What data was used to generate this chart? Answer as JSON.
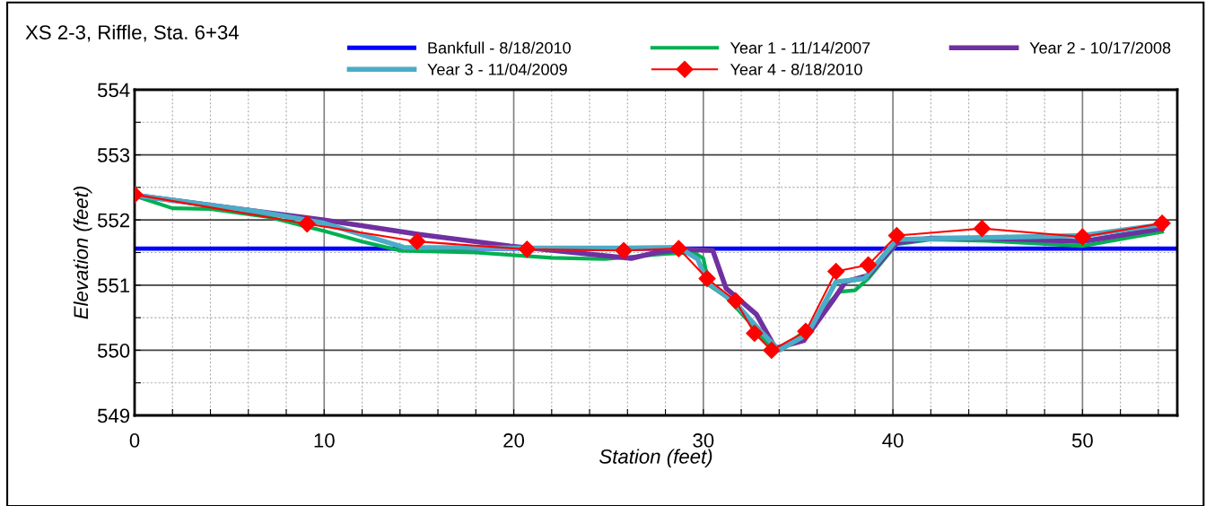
{
  "chart_data": {
    "type": "line",
    "title": "XS 2-3, Riffle, Sta. 6+34",
    "xlabel": "Station (feet)",
    "ylabel": "Elevation (feet)",
    "xlim": [
      0,
      55
    ],
    "ylim": [
      549,
      554
    ],
    "xticks": [
      0,
      {
        "value": 2,
        "label": null
      },
      {
        "value": 4,
        "label": null
      },
      {
        "value": 6,
        "label": null
      },
      {
        "value": 8,
        "label": null
      },
      10,
      {
        "value": 12,
        "label": null
      },
      {
        "value": 14,
        "label": null
      },
      {
        "value": 16,
        "label": null
      },
      {
        "value": 18,
        "label": null
      },
      20,
      {
        "value": 22,
        "label": null
      },
      {
        "value": 24,
        "label": null
      },
      {
        "value": 26,
        "label": null
      },
      {
        "value": 28,
        "label": null
      },
      30,
      {
        "value": 32,
        "label": null
      },
      {
        "value": 34,
        "label": null
      },
      {
        "value": 36,
        "label": null
      },
      {
        "value": 38,
        "label": null
      },
      40,
      {
        "value": 42,
        "label": null
      },
      {
        "value": 44,
        "label": null
      },
      {
        "value": 46,
        "label": null
      },
      {
        "value": 48,
        "label": null
      },
      50,
      {
        "value": 52,
        "label": null
      },
      {
        "value": 54,
        "label": null
      }
    ],
    "yticks": [
      549,
      {
        "value": 549.5,
        "label": null
      },
      550,
      {
        "value": 550.5,
        "label": null
      },
      551,
      {
        "value": 551.5,
        "label": null
      },
      552,
      {
        "value": 552.5,
        "label": null
      },
      553,
      {
        "value": 553.5,
        "label": null
      },
      554
    ],
    "grid": true,
    "legend": "top",
    "series": [
      {
        "name": "Bankfull - 8/18/2010",
        "color": "#0000ff",
        "marker": "none",
        "x": [
          0,
          55
        ],
        "values": [
          551.56,
          551.56
        ]
      },
      {
        "name": "Year 1 - 11/14/2007",
        "color": "#00b050",
        "marker": "none",
        "x": [
          0,
          2,
          4,
          7,
          10,
          12,
          14,
          18,
          22,
          24.8,
          28,
          29.5,
          30,
          30.3,
          31.2,
          32.7,
          33.5,
          34.3,
          36.0,
          36.7,
          37.2,
          38,
          38.7,
          40.2,
          42,
          45,
          50,
          54.2
        ],
        "values": [
          552.37,
          552.18,
          552.17,
          552.05,
          551.83,
          551.67,
          551.53,
          551.5,
          551.42,
          551.4,
          551.48,
          551.5,
          551.41,
          551.0,
          550.82,
          550.35,
          550.05,
          550.05,
          550.45,
          550.75,
          550.9,
          550.92,
          551.1,
          551.63,
          551.7,
          551.68,
          551.6,
          551.82
        ]
      },
      {
        "name": "Year 2 - 10/17/2008",
        "color": "#7030a0",
        "marker": "none",
        "x": [
          0,
          10,
          15,
          19.8,
          26.2,
          27.5,
          29,
          30.5,
          31.2,
          32.8,
          33.8,
          35.3,
          36.8,
          37.5,
          38.7,
          40.2,
          42,
          45,
          50,
          54.2
        ],
        "values": [
          552.38,
          552.0,
          551.78,
          551.6,
          551.41,
          551.5,
          551.55,
          551.53,
          550.95,
          550.55,
          550.03,
          550.15,
          550.75,
          551.05,
          551.15,
          551.65,
          551.72,
          551.72,
          551.67,
          551.87
        ]
      },
      {
        "name": "Year 3 - 11/04/2009",
        "color": "#4bacc6",
        "marker": "none",
        "x": [
          0,
          6.5,
          10,
          14.2,
          20.5,
          25.8,
          28.7,
          29.7,
          30.2,
          31.7,
          33,
          34,
          35.5,
          37,
          38.5,
          40.2,
          45,
          50,
          54.2
        ],
        "values": [
          552.38,
          552.13,
          551.95,
          551.58,
          551.57,
          551.57,
          551.58,
          551.4,
          551.05,
          550.72,
          550.3,
          550.0,
          550.25,
          551.05,
          551.1,
          551.7,
          551.73,
          551.76,
          551.93
        ]
      },
      {
        "name": "Year 4 - 8/18/2010",
        "color": "#ff0000",
        "marker": "diamond",
        "x": [
          0,
          9.1,
          14.9,
          20.7,
          25.8,
          28.7,
          30.2,
          31.7,
          32.7,
          33.6,
          35.4,
          37.0,
          38.7,
          40.2,
          44.7,
          50.0,
          54.2
        ],
        "values": [
          552.39,
          551.94,
          551.67,
          551.55,
          551.53,
          551.56,
          551.1,
          550.76,
          550.26,
          550.0,
          550.29,
          551.21,
          551.31,
          551.76,
          551.87,
          551.74,
          551.95
        ]
      }
    ]
  }
}
